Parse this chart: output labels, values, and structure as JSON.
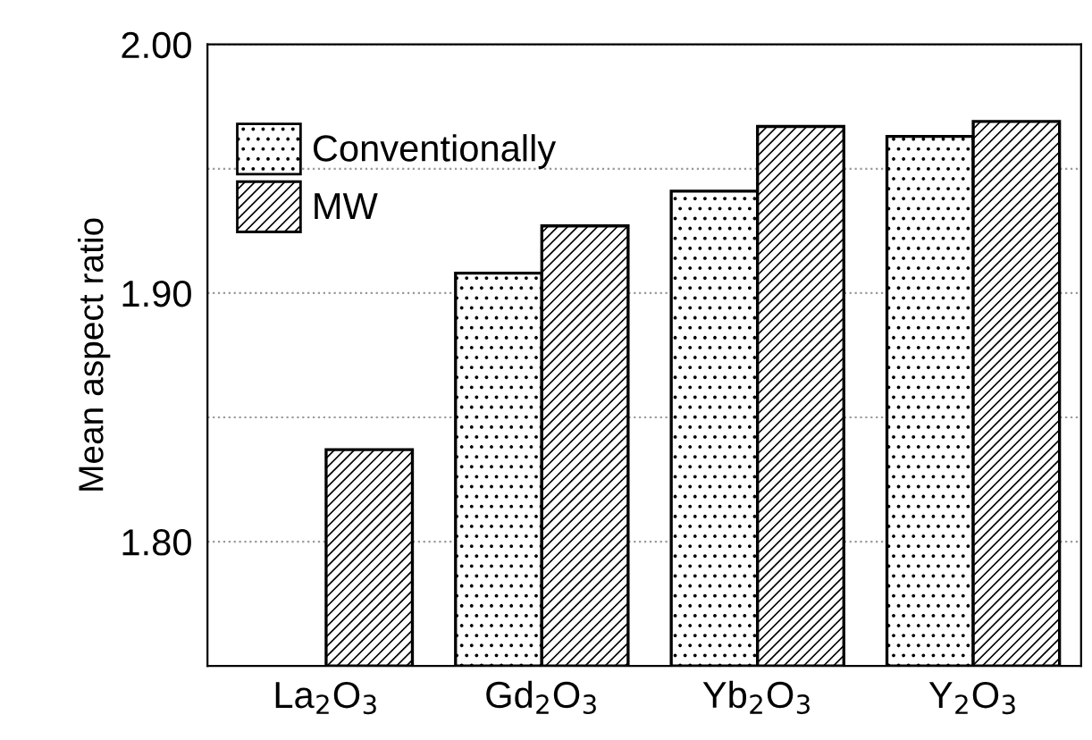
{
  "chart_data": {
    "type": "bar",
    "ylabel": "Mean aspect ratio",
    "categories": [
      "La$_{2}$O$_{3}$",
      "Gd$_{2}$O$_{3}$",
      "Yb$_{2}$O$_{3}$",
      "Y$_{2}$O$_{3}$"
    ],
    "series": [
      {
        "name": "Conventionally",
        "color": "#000000",
        "values": [
          null,
          1.908,
          1.941,
          1.963
        ]
      },
      {
        "name": "MW",
        "color": "#000000",
        "values": [
          1.837,
          1.927,
          1.967,
          1.969
        ]
      }
    ],
    "ylim": [
      1.75,
      2.0
    ],
    "yticks": [
      {
        "value": 1.8,
        "label": "1.80"
      },
      {
        "value": 1.85,
        "label": null
      },
      {
        "value": 1.9,
        "label": "1.90"
      },
      {
        "value": 1.95,
        "label": null
      },
      {
        "value": 2.0,
        "label": "2.00"
      }
    ],
    "grid": "y",
    "legend": "top left"
  }
}
